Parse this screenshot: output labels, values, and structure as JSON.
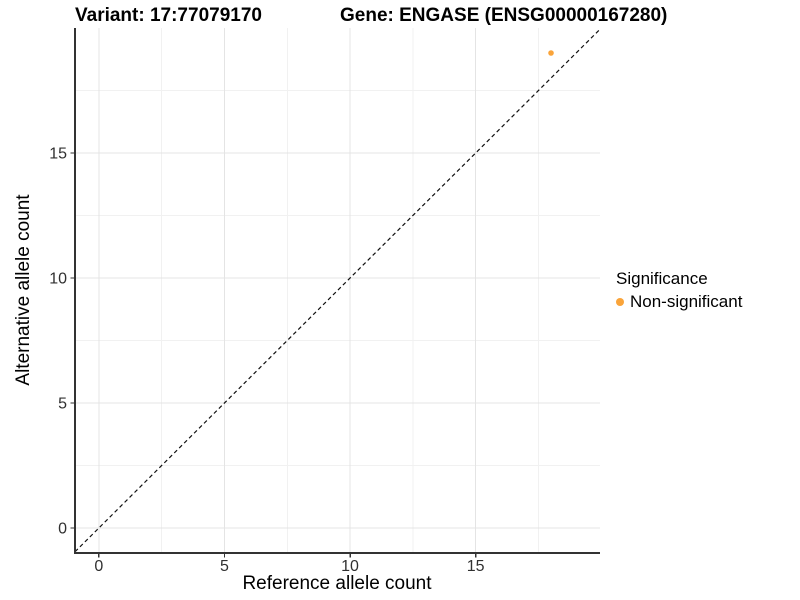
{
  "chart_data": {
    "type": "scatter",
    "title_left": "Variant: 17:77079170",
    "title_right": "Gene: ENGASE (ENSG00000167280)",
    "xlabel": "Reference allele count",
    "ylabel": "Alternative allele count",
    "xlim": [
      -0.95,
      19.95
    ],
    "ylim": [
      -1,
      20
    ],
    "x_ticks": [
      0,
      5,
      10,
      15
    ],
    "y_ticks": [
      0,
      5,
      10,
      15
    ],
    "x_minor_ticks": [
      2.5,
      7.5,
      12.5,
      17.5
    ],
    "y_minor_ticks": [
      2.5,
      7.5,
      12.5,
      17.5
    ],
    "grid": true,
    "points": [
      {
        "x": 18,
        "y": 19,
        "series": "Non-significant",
        "color": "#FAA43A"
      }
    ],
    "reference_line": {
      "type": "identity",
      "style": "dashed",
      "color": "#111111"
    },
    "legend": {
      "position": "right",
      "title": "Significance",
      "items": [
        {
          "label": "Non-significant",
          "color": "#FAA43A"
        }
      ]
    },
    "style": {
      "axis_color": "#333333",
      "tick_label_color": "#303030",
      "major_grid_color": "#E4E4E4",
      "minor_grid_color": "#F1F1F1",
      "background": "#FFFFFF"
    }
  }
}
